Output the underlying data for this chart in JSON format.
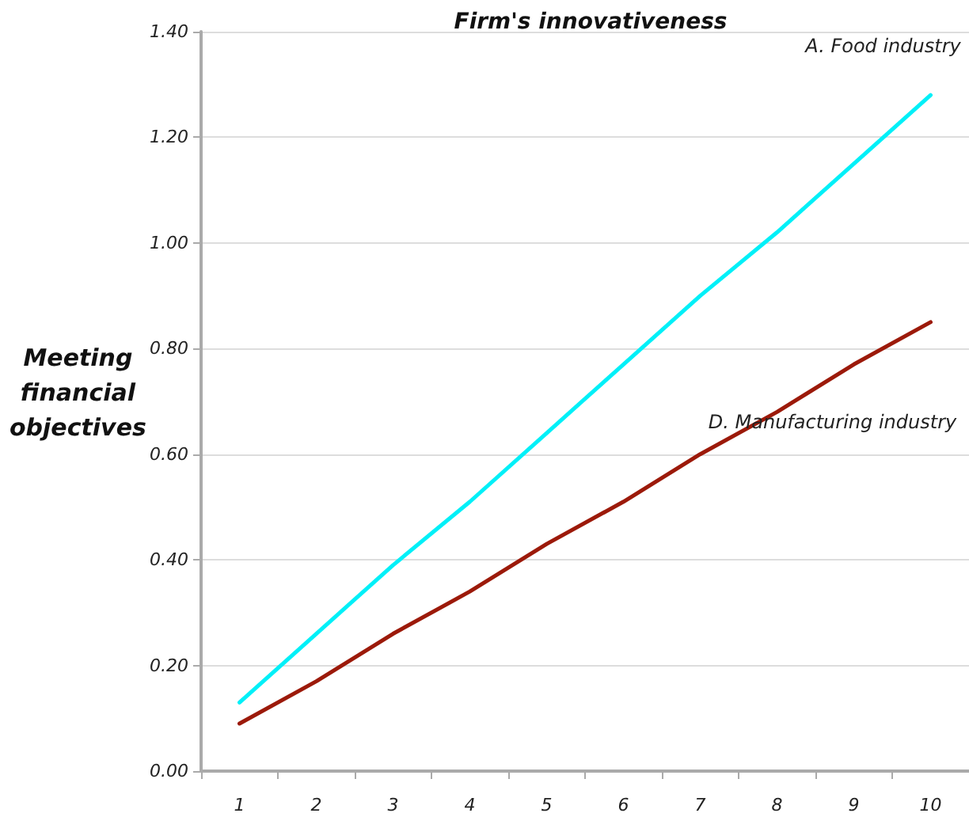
{
  "chart_data": {
    "type": "line",
    "title": "Firm's innovativeness",
    "ylabel": "Meeting financial objectives",
    "categories": [
      "1",
      "2",
      "3",
      "4",
      "5",
      "6",
      "7",
      "8",
      "9",
      "10"
    ],
    "series": [
      {
        "name": "A. Food industry",
        "color": "#00f0f8",
        "values": [
          0.13,
          0.26,
          0.39,
          0.51,
          0.64,
          0.77,
          0.9,
          1.02,
          1.15,
          1.28
        ]
      },
      {
        "name": "D. Manufacturing industry",
        "color": "#9c1a0a",
        "values": [
          0.09,
          0.17,
          0.26,
          0.34,
          0.43,
          0.51,
          0.6,
          0.68,
          0.77,
          0.85
        ]
      }
    ],
    "ylim": [
      0,
      1.4
    ],
    "yticks": [
      {
        "value": 0,
        "label": "0.00"
      },
      {
        "value": 0.2,
        "label": "0.20"
      },
      {
        "value": 0.4,
        "label": "0.40"
      },
      {
        "value": 0.6,
        "label": "0.60"
      },
      {
        "value": 0.8,
        "label": "0.80"
      },
      {
        "value": 1.0,
        "label": "1.00"
      },
      {
        "value": 1.2,
        "label": "1.20"
      },
      {
        "value": 1.4,
        "label": "1.40"
      }
    ],
    "grid": "y",
    "legend": false,
    "marker": "none",
    "line_style": "solid"
  }
}
